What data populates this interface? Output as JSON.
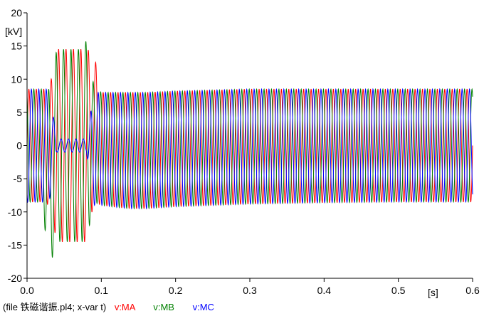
{
  "colors": {
    "background": "#ffffff",
    "axis": "#000000",
    "series_ma": "#ff0000",
    "series_mb": "#008000",
    "series_mc": "#0000ff"
  },
  "footer": {
    "prefix": "(file 铁磁谐振.pl4; x-var t)",
    "series_labels": [
      "v:MA",
      "v:MB",
      "v:MC"
    ]
  },
  "chart_data": {
    "type": "line",
    "title": "",
    "xlabel": "[s]",
    "ylabel": "[kV]",
    "xlim": [
      0.0,
      0.6
    ],
    "ylim": [
      -20,
      20
    ],
    "x_ticks": [
      "0.0",
      "0.1",
      "0.2",
      "0.3",
      "0.4",
      "0.5",
      "0.6"
    ],
    "y_ticks": [
      "20",
      "15",
      "10",
      "5",
      "0",
      "-5",
      "-10",
      "-15",
      "-20"
    ],
    "grid": false,
    "legend": "bottom-left",
    "series": [
      {
        "name": "v:MA",
        "color": "#ff0000",
        "x": [
          0.0,
          0.01,
          0.02,
          0.03,
          0.04,
          0.05,
          0.06,
          0.07,
          0.08,
          0.09,
          0.1,
          0.12,
          0.14,
          0.16,
          0.2,
          0.3,
          0.4,
          0.5,
          0.6
        ],
        "y_envelope_peak": [
          8.5,
          8.5,
          8.5,
          8.5,
          14.5,
          14.5,
          14.5,
          14.5,
          14.5,
          14.0,
          8.0,
          8.0,
          8.0,
          8.0,
          8.2,
          8.5,
          8.5,
          8.5,
          8.5
        ],
        "y_envelope_trough": [
          -8.5,
          -8.5,
          -8.5,
          -9.0,
          -14.5,
          -14.5,
          -14.5,
          -14.5,
          -14.5,
          -8.5,
          -9.0,
          -9.3,
          -9.5,
          -9.5,
          -9.2,
          -8.8,
          -8.6,
          -8.5,
          -8.5
        ]
      },
      {
        "name": "v:MB",
        "color": "#008000",
        "x": [
          0.0,
          0.01,
          0.02,
          0.03,
          0.04,
          0.05,
          0.06,
          0.07,
          0.08,
          0.09,
          0.1,
          0.12,
          0.14,
          0.16,
          0.2,
          0.3,
          0.4,
          0.5,
          0.6
        ],
        "y_envelope_peak": [
          8.5,
          8.5,
          8.5,
          8.5,
          14.5,
          14.5,
          14.5,
          14.5,
          15.8,
          9.0,
          8.0,
          8.0,
          8.0,
          8.0,
          8.2,
          8.5,
          8.5,
          8.5,
          8.5
        ],
        "y_envelope_trough": [
          -8.5,
          -8.5,
          -8.5,
          -18.5,
          -14.5,
          -14.5,
          -14.5,
          -14.5,
          -14.5,
          -8.5,
          -9.0,
          -9.3,
          -9.5,
          -9.5,
          -9.2,
          -8.8,
          -8.6,
          -8.5,
          -8.5
        ]
      },
      {
        "name": "v:MC",
        "color": "#0000ff",
        "x": [
          0.0,
          0.01,
          0.02,
          0.03,
          0.04,
          0.05,
          0.06,
          0.07,
          0.08,
          0.09,
          0.1,
          0.12,
          0.14,
          0.16,
          0.2,
          0.3,
          0.4,
          0.5,
          0.6
        ],
        "y_envelope_peak": [
          8.5,
          8.5,
          8.5,
          8.5,
          1.0,
          1.0,
          1.0,
          1.0,
          1.0,
          8.0,
          8.0,
          8.0,
          8.0,
          8.0,
          8.2,
          8.5,
          8.5,
          8.5,
          8.5
        ],
        "y_envelope_trough": [
          -8.5,
          -8.5,
          -8.5,
          -8.5,
          -1.0,
          -1.0,
          -1.0,
          -1.0,
          -1.0,
          -9.0,
          -9.0,
          -9.3,
          -9.5,
          -9.5,
          -9.2,
          -8.8,
          -8.6,
          -8.5,
          -8.5
        ],
        "frequency_hz": 100,
        "phase_deg": 240
      }
    ],
    "notes": "Three-phase voltage waveforms at about 100 Hz: transient between 0.03 s and 0.095 s (MA/MB about +/-14.5 kV, MC collapsing to about +/-1 kV), then steady oscillation at about +/-8.5 kV"
  }
}
